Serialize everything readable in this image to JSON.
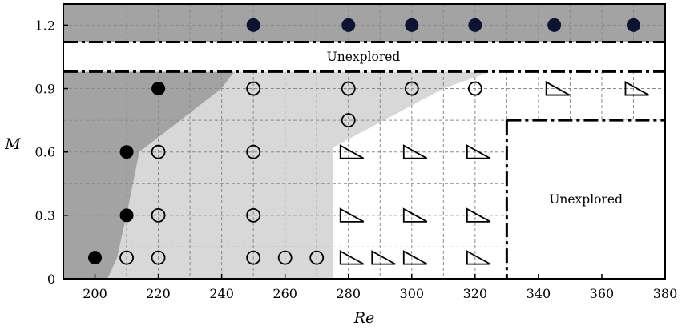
{
  "chart_data": {
    "type": "scatter",
    "xlabel": "Re",
    "ylabel": "M",
    "xlim": [
      190,
      380
    ],
    "ylim": [
      0,
      1.3
    ],
    "x_ticks": [
      "200",
      "220",
      "240",
      "260",
      "280",
      "300",
      "320",
      "340",
      "360",
      "380"
    ],
    "y_ticks": [
      "0",
      "0.3",
      "0.6",
      "0.9",
      "1.2"
    ],
    "grid": true,
    "annotations": [
      "Unexplored",
      "Unexplored"
    ],
    "series": [
      {
        "marker": "filled-circle",
        "points": [
          [
            200,
            0.1
          ],
          [
            210,
            0.3
          ],
          [
            210,
            0.6
          ],
          [
            220,
            0.9
          ],
          [
            250,
            1.2
          ],
          [
            280,
            1.2
          ],
          [
            300,
            1.2
          ],
          [
            320,
            1.2
          ],
          [
            345,
            1.2
          ],
          [
            370,
            1.2
          ]
        ]
      },
      {
        "marker": "open-circle",
        "points": [
          [
            210,
            0.1
          ],
          [
            220,
            0.1
          ],
          [
            250,
            0.1
          ],
          [
            260,
            0.1
          ],
          [
            270,
            0.1
          ],
          [
            220,
            0.3
          ],
          [
            250,
            0.3
          ],
          [
            220,
            0.6
          ],
          [
            250,
            0.6
          ],
          [
            250,
            0.9
          ],
          [
            280,
            0.9
          ],
          [
            300,
            0.9
          ],
          [
            320,
            0.9
          ],
          [
            280,
            0.75
          ]
        ]
      },
      {
        "marker": "open-triangle",
        "points": [
          [
            280,
            0.1
          ],
          [
            290,
            0.1
          ],
          [
            300,
            0.1
          ],
          [
            320,
            0.1
          ],
          [
            280,
            0.3
          ],
          [
            300,
            0.3
          ],
          [
            320,
            0.3
          ],
          [
            280,
            0.6
          ],
          [
            300,
            0.6
          ],
          [
            320,
            0.6
          ],
          [
            345,
            0.9
          ],
          [
            370,
            0.9
          ]
        ]
      }
    ],
    "regions": [
      {
        "shade": "dark",
        "polygon": [
          [
            190,
            0
          ],
          [
            204,
            0
          ],
          [
            207,
            0.1
          ],
          [
            210,
            0.3
          ],
          [
            214,
            0.6
          ],
          [
            240,
            0.9
          ],
          [
            244,
            0.98
          ],
          [
            190,
            0.98
          ]
        ]
      },
      {
        "shade": "dark",
        "polygon": [
          [
            190,
            1.12
          ],
          [
            380,
            1.12
          ],
          [
            380,
            1.3
          ],
          [
            190,
            1.3
          ]
        ]
      },
      {
        "shade": "light",
        "polygon": [
          [
            204,
            0
          ],
          [
            275,
            0
          ],
          [
            275,
            0.62
          ],
          [
            310,
            0.9
          ],
          [
            325,
            0.98
          ],
          [
            244,
            0.98
          ],
          [
            240,
            0.9
          ],
          [
            214,
            0.6
          ],
          [
            210,
            0.3
          ],
          [
            207,
            0.1
          ]
        ]
      }
    ],
    "unexplored_boxes": [
      {
        "label_index": 0,
        "x": [
          190,
          380
        ],
        "y": [
          0.98,
          1.12
        ]
      },
      {
        "label_index": 1,
        "x": [
          330,
          380
        ],
        "y": [
          0,
          0.75
        ]
      }
    ],
    "colors": {
      "dark_region": "#a3a3a3",
      "light_region": "#d8d8d8",
      "filled_marker": "#000000",
      "filled_marker_upper": "#0d1330",
      "grid": "#8a8a8a"
    }
  }
}
